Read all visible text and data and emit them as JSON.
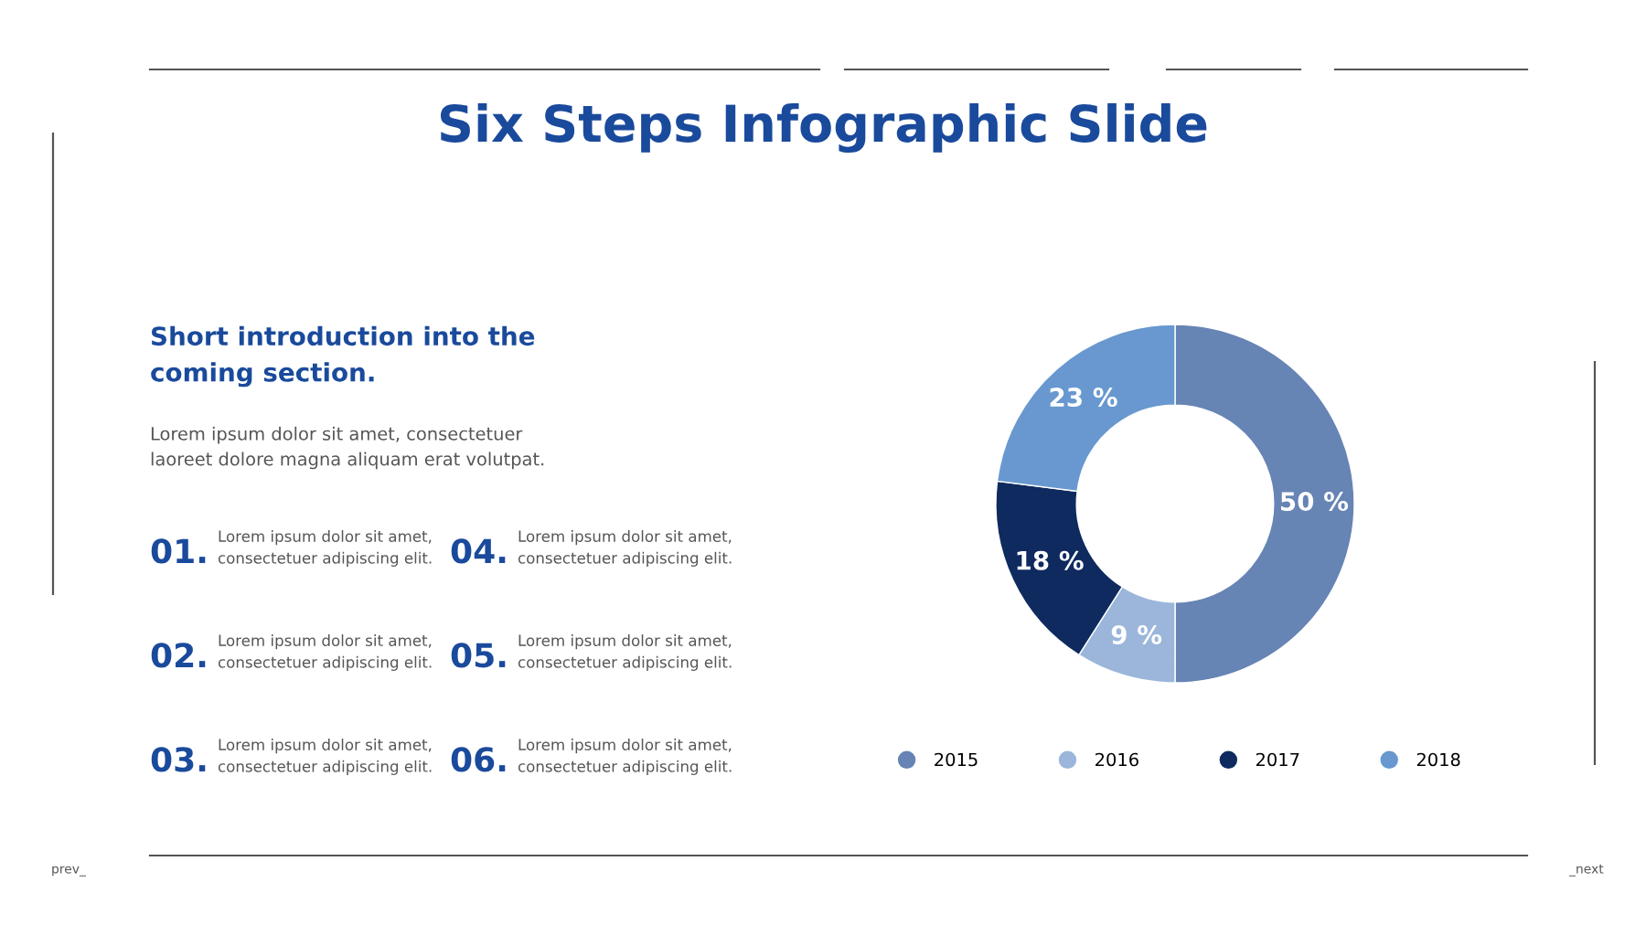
{
  "chart_data": {
    "type": "donut",
    "title": "Six Steps Infographic Slide",
    "categories": [
      "2015",
      "2016",
      "2017",
      "2018"
    ],
    "values": [
      50,
      9,
      18,
      23
    ],
    "colors": [
      "#6684b4",
      "#9bb6da",
      "#0f2a5f",
      "#6898cf"
    ],
    "value_labels": [
      "50 %",
      "9 %",
      "18 %",
      "23 %"
    ],
    "legend": "bottom",
    "annotations": [
      "Short introduction into the\ncoming section.",
      "Lorem ipsum dolor sit amet, consectetuer\nlaoreet dolore magna aliquam erat volutpat.",
      "01.",
      "Lorem ipsum dolor sit amet,\nconsectetuer adipiscing elit.",
      "04.",
      "Lorem ipsum dolor sit amet,\nconsectetuer adipiscing elit.",
      "02.",
      "Lorem ipsum dolor sit amet,\nconsectetuer adipiscing elit.",
      "05.",
      "Lorem ipsum dolor sit amet,\nconsectetuer adipiscing elit.",
      "03.",
      "Lorem ipsum dolor sit amet,\nconsectetuer adipiscing elit.",
      "06.",
      "Lorem ipsum dolor sit amet,\nconsectetuer adipiscing elit.",
      "prev_",
      "_next"
    ]
  }
}
